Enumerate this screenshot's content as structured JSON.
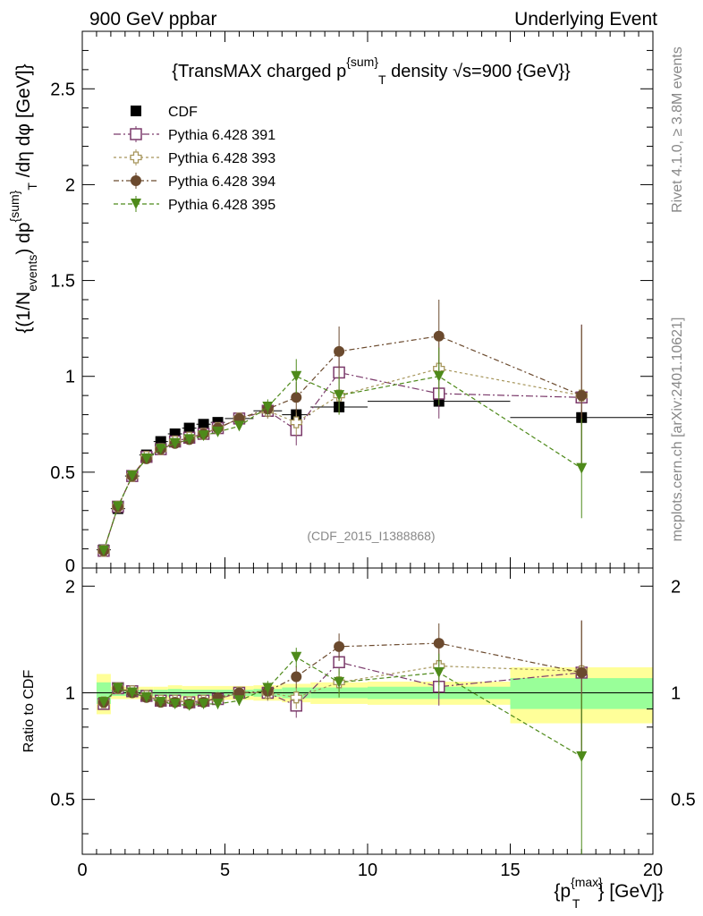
{
  "header": {
    "left": "900 GeV ppbar",
    "right": "Underlying Event"
  },
  "side": {
    "rivet": "Rivet 4.1.0, ≥ 3.8M events",
    "mcplots": "mcplots.cern.ch [arXiv:2401.10621]"
  },
  "watermark": "(CDF_2015_I1388868)",
  "chart_data": [
    {
      "type": "scatter",
      "panel": "main",
      "title": "{TransMAX charged p^{sum}_T density √s=900 {GeV}}",
      "title_parts": {
        "a": "{TransMAX charged p",
        "sup": "{sum}",
        "sub": "T",
        "b": " density ",
        "root": "√",
        "c": "s=900 {GeV}}"
      },
      "xlabel": "{p_T^{max}} [GeV]}",
      "ylabel": "{(1/N_events) dp^{sum}_T /dη dφ [GeV]}",
      "ylabel_parts": {
        "a": "{(1/N",
        "sub1": "events",
        "b": ") dp",
        "sup": "{sum}",
        "sub2": "T",
        "c": " /dη  dφ [GeV]}"
      },
      "xlim": [
        0,
        20
      ],
      "ylim": [
        0,
        2.8
      ],
      "yticks": [
        0.5,
        1,
        1.5,
        2,
        2.5
      ],
      "ytick_labels": [
        "0.5",
        "1",
        "1.5",
        "2",
        "2.5"
      ],
      "y_zero_label": "0",
      "x": [
        0.75,
        1.25,
        1.75,
        2.25,
        2.75,
        3.25,
        3.75,
        4.25,
        4.75,
        5.5,
        6.5,
        7.5,
        9.0,
        12.5,
        17.5
      ],
      "x_err": [
        0.25,
        0.25,
        0.25,
        0.25,
        0.25,
        0.25,
        0.25,
        0.25,
        0.25,
        0.5,
        0.5,
        0.5,
        1.0,
        2.5,
        2.5
      ],
      "series": [
        {
          "name": "CDF",
          "color": "#000000",
          "marker": "square-filled",
          "values": [
            0.095,
            0.31,
            0.48,
            0.59,
            0.66,
            0.7,
            0.73,
            0.75,
            0.76,
            0.78,
            0.82,
            0.8,
            0.84,
            0.87,
            0.785
          ],
          "errors": [
            0.005,
            0.01,
            0.01,
            0.01,
            0.01,
            0.01,
            0.01,
            0.01,
            0.01,
            0.015,
            0.02,
            0.03,
            0.03,
            0.03,
            0.04
          ]
        },
        {
          "name": "Pythia 6.428 391",
          "color": "#7b3a6b",
          "marker": "square-open",
          "dash": "8,3,2,3",
          "values": [
            0.09,
            0.32,
            0.48,
            0.58,
            0.62,
            0.66,
            0.68,
            0.7,
            0.73,
            0.78,
            0.82,
            0.72,
            1.02,
            0.91,
            0.89
          ],
          "errors": [
            0.003,
            0.005,
            0.006,
            0.008,
            0.01,
            0.01,
            0.012,
            0.015,
            0.02,
            0.02,
            0.04,
            0.08,
            0.12,
            0.13,
            0.38
          ]
        },
        {
          "name": "Pythia 6.428 393",
          "color": "#a6955a",
          "marker": "cross-open",
          "dash": "3,3",
          "values": [
            0.09,
            0.32,
            0.48,
            0.58,
            0.62,
            0.66,
            0.68,
            0.7,
            0.73,
            0.78,
            0.82,
            0.76,
            0.9,
            1.04,
            0.9
          ],
          "errors": [
            0.003,
            0.005,
            0.006,
            0.008,
            0.01,
            0.01,
            0.012,
            0.015,
            0.02,
            0.02,
            0.04,
            0.07,
            0.1,
            0.15,
            0.35
          ]
        },
        {
          "name": "Pythia 6.428 394",
          "color": "#6b4a2e",
          "marker": "circle-filled",
          "dash": "6,3,2,3",
          "values": [
            0.09,
            0.32,
            0.48,
            0.57,
            0.62,
            0.65,
            0.67,
            0.7,
            0.73,
            0.78,
            0.83,
            0.89,
            1.13,
            1.21,
            0.9
          ],
          "errors": [
            0.003,
            0.005,
            0.006,
            0.008,
            0.01,
            0.01,
            0.012,
            0.015,
            0.02,
            0.02,
            0.04,
            0.08,
            0.13,
            0.19,
            0.37
          ]
        },
        {
          "name": "Pythia 6.428 395",
          "color": "#4e8a1a",
          "marker": "triangle-down-filled",
          "dash": "5,3",
          "values": [
            0.09,
            0.32,
            0.48,
            0.57,
            0.62,
            0.65,
            0.67,
            0.69,
            0.71,
            0.74,
            0.84,
            1.0,
            0.9,
            1.0,
            0.52
          ],
          "errors": [
            0.003,
            0.005,
            0.006,
            0.008,
            0.01,
            0.01,
            0.012,
            0.015,
            0.02,
            0.02,
            0.04,
            0.09,
            0.1,
            0.15,
            0.26
          ]
        }
      ]
    },
    {
      "type": "scatter",
      "panel": "ratio",
      "ylabel": "Ratio to CDF",
      "xlabel_parts": {
        "a": "{p",
        "sup": "{max}",
        "sub": "T",
        "b": "} [GeV]}"
      },
      "xlim": [
        0,
        20
      ],
      "ylim": [
        0.35,
        2.25
      ],
      "yticks": [
        0.5,
        1,
        2
      ],
      "ytick_labels": [
        "0.5",
        "1",
        "2"
      ],
      "xticks": [
        0,
        5,
        10,
        15,
        20
      ],
      "xtick_labels": [
        "0",
        "5",
        "10",
        "15",
        "20"
      ],
      "bands": [
        {
          "x0": 0.5,
          "x1": 1.0,
          "stat": 0.07,
          "total": 0.13
        },
        {
          "x0": 1.0,
          "x1": 2.5,
          "stat": 0.02,
          "total": 0.04
        },
        {
          "x0": 2.5,
          "x1": 3.0,
          "stat": 0.02,
          "total": 0.04
        },
        {
          "x0": 3.0,
          "x1": 3.5,
          "stat": 0.025,
          "total": 0.05
        },
        {
          "x0": 3.5,
          "x1": 5.0,
          "stat": 0.02,
          "total": 0.045
        },
        {
          "x0": 5.0,
          "x1": 6.0,
          "stat": 0.02,
          "total": 0.045
        },
        {
          "x0": 6.0,
          "x1": 7.0,
          "stat": 0.025,
          "total": 0.05
        },
        {
          "x0": 7.0,
          "x1": 8.0,
          "stat": 0.035,
          "total": 0.06
        },
        {
          "x0": 8.0,
          "x1": 10.0,
          "stat": 0.035,
          "total": 0.07
        },
        {
          "x0": 10.0,
          "x1": 15.0,
          "stat": 0.04,
          "total": 0.075
        },
        {
          "x0": 15.0,
          "x1": 20.0,
          "stat": 0.1,
          "total": 0.18
        }
      ],
      "series": [
        {
          "name": "Pythia 6.428 391",
          "values": [
            0.93,
            1.03,
            1.01,
            0.98,
            0.95,
            0.95,
            0.94,
            0.95,
            0.96,
            1.0,
            1.0,
            0.92,
            1.22,
            1.04,
            1.14
          ],
          "errors": [
            0.02,
            0.02,
            0.02,
            0.02,
            0.02,
            0.02,
            0.02,
            0.02,
            0.03,
            0.03,
            0.05,
            0.07,
            0.09,
            0.12,
            0.46
          ]
        },
        {
          "name": "Pythia 6.428 393",
          "values": [
            0.94,
            1.03,
            1.01,
            0.98,
            0.95,
            0.95,
            0.94,
            0.95,
            0.96,
            1.0,
            1.0,
            0.97,
            1.07,
            1.19,
            1.15
          ],
          "errors": [
            0.02,
            0.02,
            0.02,
            0.02,
            0.02,
            0.02,
            0.02,
            0.02,
            0.03,
            0.03,
            0.05,
            0.07,
            0.08,
            0.14,
            0.44
          ]
        },
        {
          "name": "Pythia 6.428 394",
          "values": [
            0.94,
            1.03,
            1.0,
            0.97,
            0.94,
            0.94,
            0.93,
            0.94,
            0.97,
            1.0,
            1.01,
            1.11,
            1.35,
            1.38,
            1.14
          ],
          "errors": [
            0.02,
            0.02,
            0.02,
            0.02,
            0.02,
            0.02,
            0.02,
            0.02,
            0.03,
            0.03,
            0.05,
            0.08,
            0.12,
            0.19,
            0.46
          ]
        },
        {
          "name": "Pythia 6.428 395",
          "values": [
            0.94,
            1.03,
            1.0,
            0.97,
            0.94,
            0.93,
            0.92,
            0.93,
            0.93,
            0.95,
            1.03,
            1.26,
            1.07,
            1.14,
            0.66
          ],
          "errors": [
            0.02,
            0.02,
            0.02,
            0.02,
            0.02,
            0.02,
            0.02,
            0.02,
            0.03,
            0.03,
            0.05,
            0.08,
            0.1,
            0.15,
            0.33
          ]
        }
      ]
    }
  ]
}
